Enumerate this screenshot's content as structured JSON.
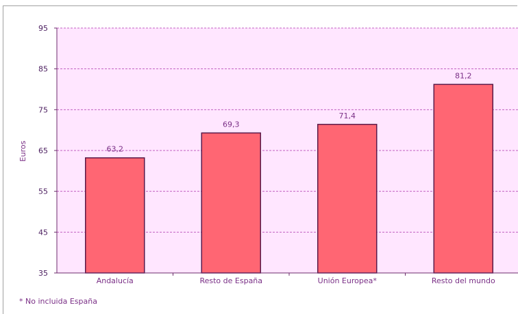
{
  "chart_data": {
    "type": "bar",
    "categories": [
      "Andalucía",
      "Resto de España",
      "Unión Europea*",
      "Resto del mundo"
    ],
    "values": [
      63.2,
      69.3,
      71.4,
      81.2
    ],
    "data_labels": [
      "63,2",
      "69,3",
      "71,4",
      "81,2"
    ],
    "ylabel": "Euros",
    "ylim": [
      35,
      95
    ],
    "yticks": [
      35,
      45,
      55,
      65,
      75,
      85,
      95
    ],
    "grid": true,
    "colors": {
      "bar_fill": "#ff6673",
      "bar_stroke": "#5a1a4a",
      "plot_background": "#ffe6ff",
      "gridline": "#c060c0",
      "axis": "#6b2a6b"
    }
  },
  "footnote": "* No incluida España"
}
